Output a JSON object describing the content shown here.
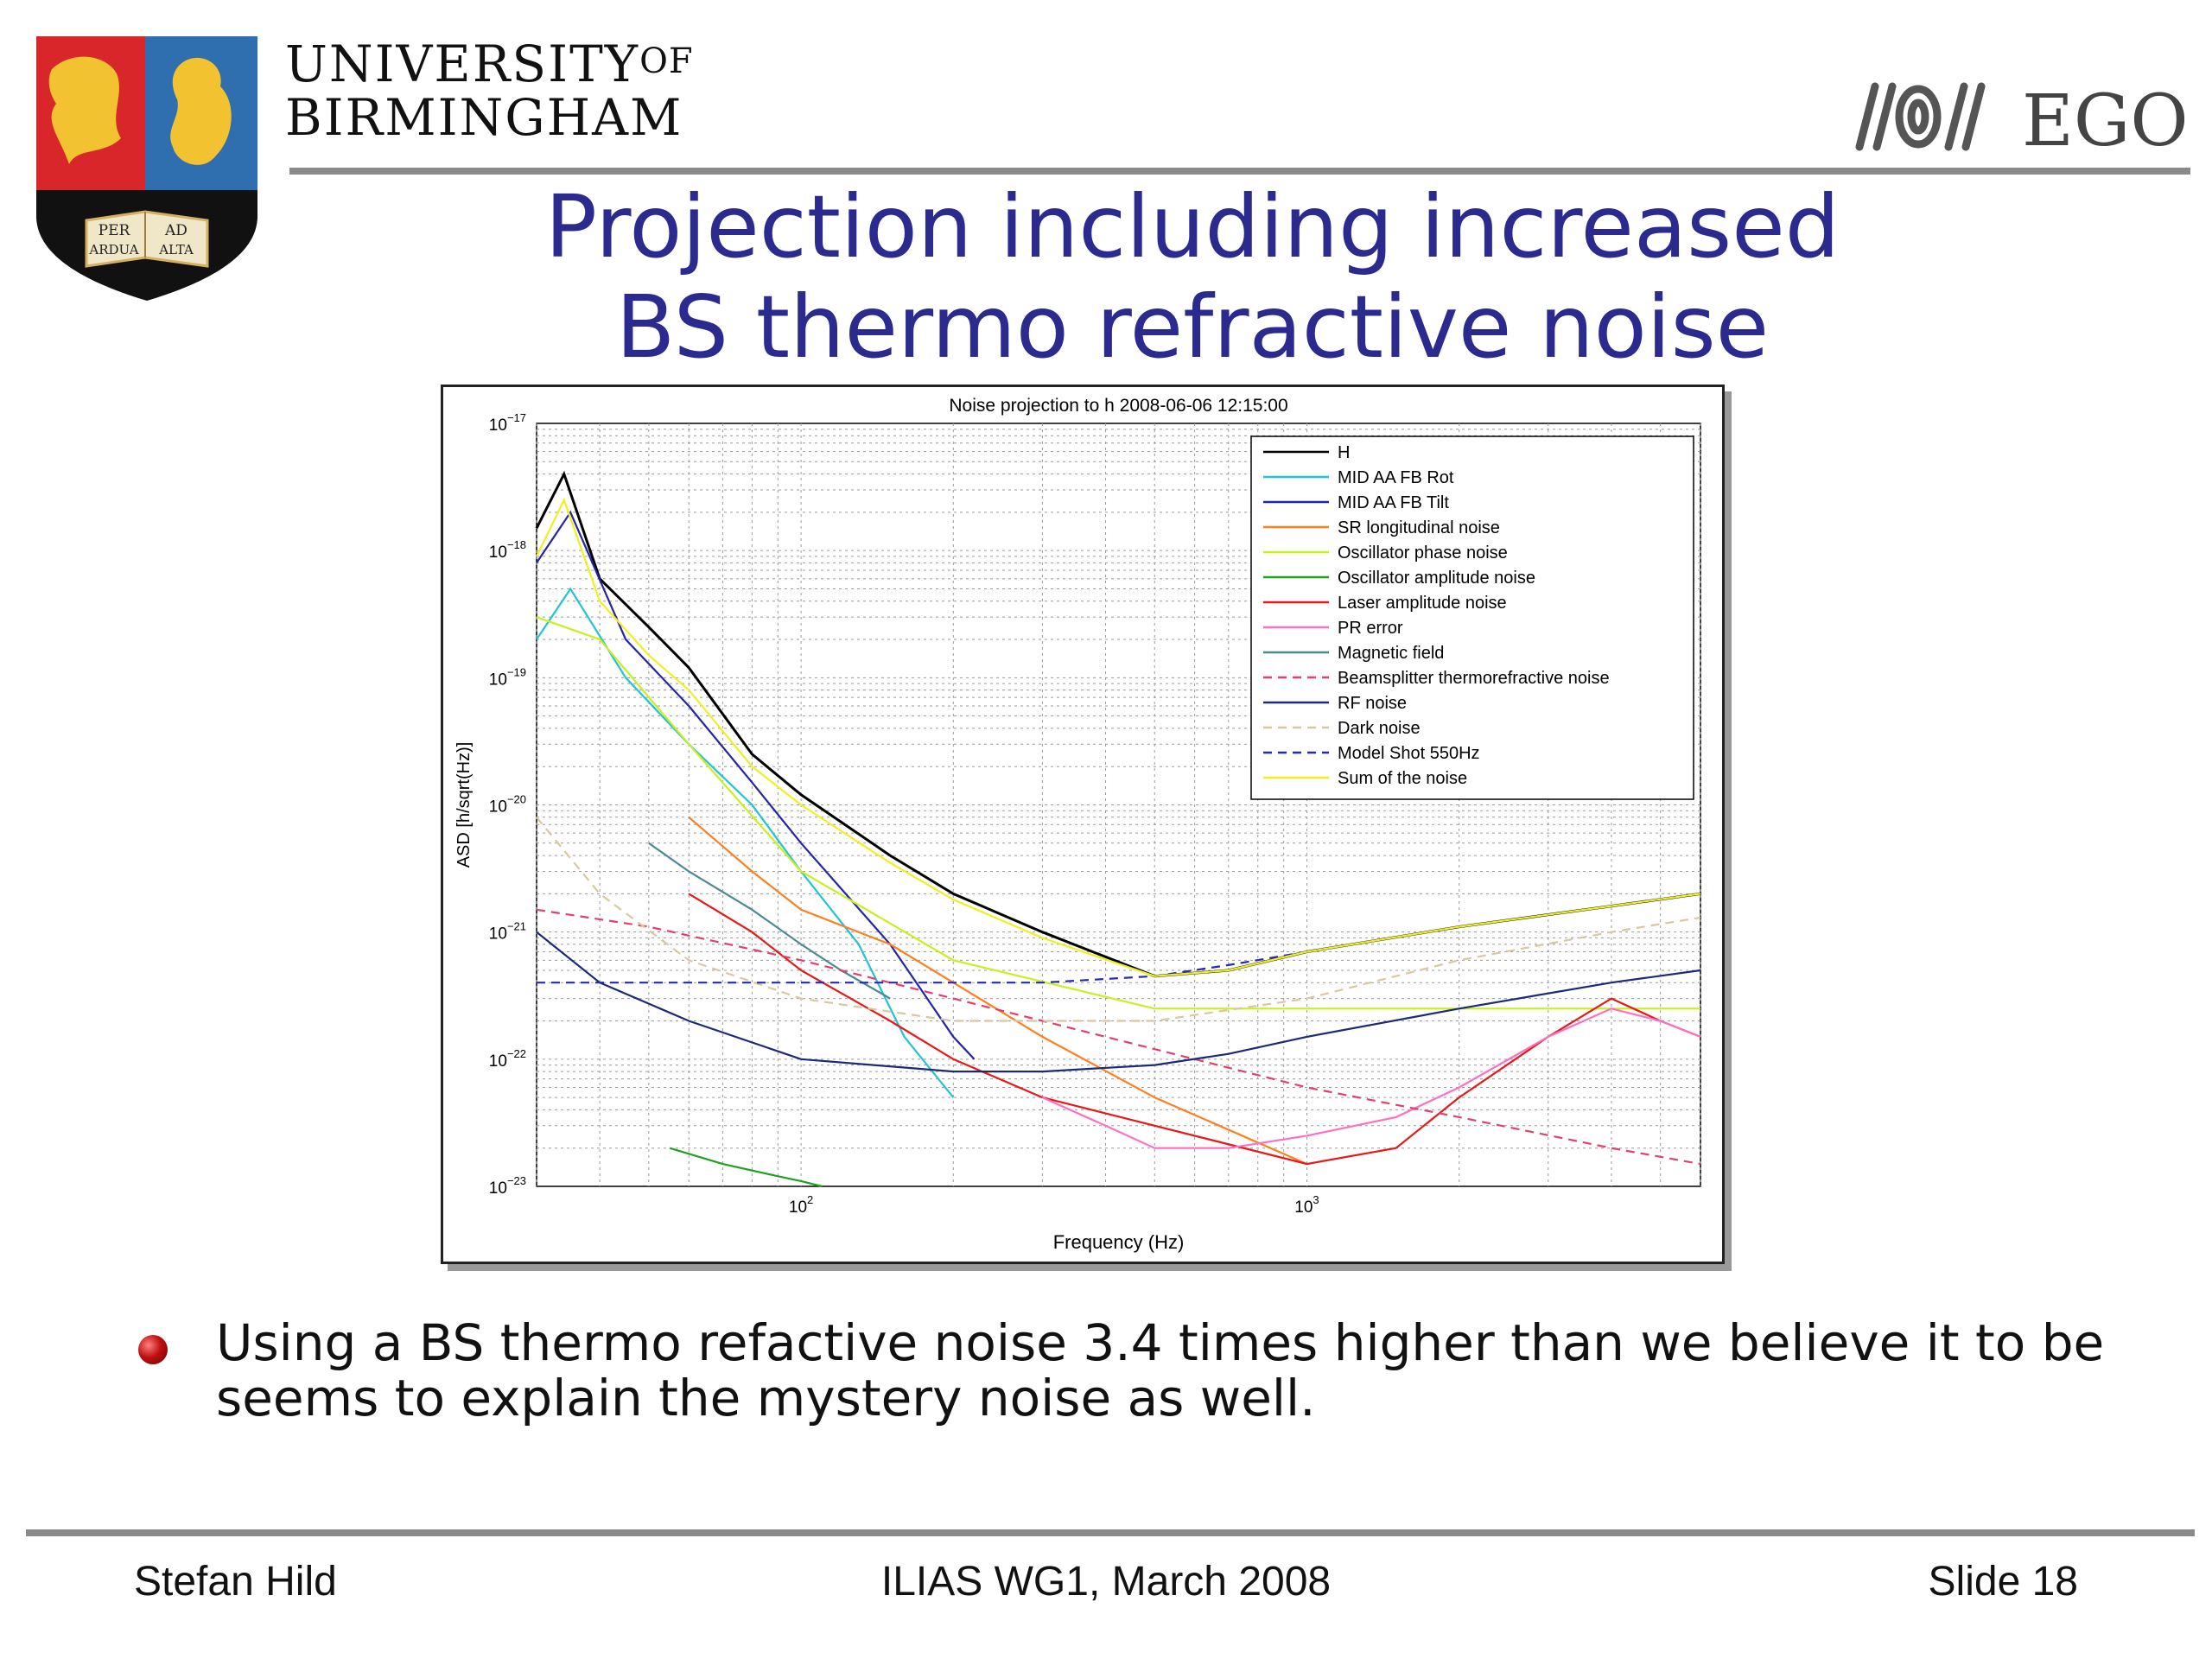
{
  "header": {
    "university_line1": "UNIVERSITY",
    "university_of": "OF",
    "university_line2": "BIRMINGHAM",
    "crest_motto_1": "PER",
    "crest_motto_2": "AD",
    "crest_motto_3": "ARDUA",
    "crest_motto_4": "ALTA",
    "ego_text": "EGO"
  },
  "slide": {
    "title_line1": "Projection including increased",
    "title_line2": "BS thermo refractive noise",
    "bullet": "Using a BS thermo refactive noise 3.4 times higher than we believe it to be seems to explain the mystery noise as well."
  },
  "footer": {
    "author": "Stefan Hild",
    "event": "ILIAS WG1, March 2008",
    "slide_number": "Slide 18"
  },
  "chart_data": {
    "type": "line",
    "title": "Noise projection to h 2008-06-06 12:15:00",
    "xlabel": "Frequency (Hz)",
    "ylabel": "ASD [h/sqrt(Hz)]",
    "x_scale": "log",
    "y_scale": "log",
    "xlim": [
      30,
      6000
    ],
    "ylim": [
      1e-23,
      1e-17
    ],
    "grid": true,
    "legend_position": "top-right",
    "x_ticks": [
      {
        "label": "10",
        "exp": "2",
        "value": 100
      },
      {
        "label": "10",
        "exp": "3",
        "value": 1000
      }
    ],
    "y_ticks": [
      {
        "label": "10",
        "exp": "−17",
        "value": 1e-17
      },
      {
        "label": "10",
        "exp": "−18",
        "value": 1e-18
      },
      {
        "label": "10",
        "exp": "−19",
        "value": 1e-19
      },
      {
        "label": "10",
        "exp": "−20",
        "value": 1e-20
      },
      {
        "label": "10",
        "exp": "−21",
        "value": 1e-21
      },
      {
        "label": "10",
        "exp": "−22",
        "value": 1e-22
      },
      {
        "label": "10",
        "exp": "−23",
        "value": 1e-23
      }
    ],
    "series": [
      {
        "name": "H",
        "color": "#000000",
        "dash": "solid",
        "x": [
          30,
          34,
          40,
          50,
          60,
          80,
          100,
          150,
          200,
          300,
          500,
          700,
          1000,
          2000,
          4000,
          6000
        ],
        "y": [
          1.5e-18,
          4e-18,
          6e-19,
          2.5e-19,
          1.2e-19,
          2.5e-20,
          1.2e-20,
          4e-21,
          2e-21,
          1e-21,
          4.5e-22,
          5e-22,
          7e-22,
          1.1e-21,
          1.6e-21,
          2e-21
        ]
      },
      {
        "name": "MID AA FB Rot",
        "color": "#22c4d4",
        "dash": "solid",
        "x": [
          30,
          35,
          45,
          60,
          80,
          100,
          130,
          160,
          200
        ],
        "y": [
          2e-19,
          5e-19,
          1e-19,
          3e-20,
          1e-20,
          3e-21,
          8e-22,
          1.5e-22,
          5e-23
        ]
      },
      {
        "name": "MID AA FB Tilt",
        "color": "#2424aa",
        "dash": "solid",
        "x": [
          30,
          35,
          45,
          60,
          80,
          100,
          150,
          200,
          220
        ],
        "y": [
          8e-19,
          2e-18,
          2e-19,
          6e-20,
          1.5e-20,
          5e-21,
          8e-22,
          1.5e-22,
          1e-22
        ]
      },
      {
        "name": "SR longitudinal noise",
        "color": "#ff7f20",
        "dash": "solid",
        "x": [
          60,
          80,
          100,
          150,
          200,
          300,
          500,
          1000
        ],
        "y": [
          8e-21,
          3e-21,
          1.5e-21,
          8e-22,
          4e-22,
          1.5e-22,
          5e-23,
          1.5e-23
        ]
      },
      {
        "name": "Oscillator phase noise",
        "color": "#c8f020",
        "dash": "solid",
        "x": [
          30,
          40,
          60,
          100,
          200,
          500,
          1000,
          2000,
          4000,
          6000
        ],
        "y": [
          3e-19,
          2e-19,
          3e-20,
          3e-21,
          6e-22,
          2.5e-22,
          2.5e-22,
          2.5e-22,
          2.5e-22,
          2.5e-22
        ]
      },
      {
        "name": "Oscillator amplitude noise",
        "color": "#20a020",
        "dash": "solid",
        "x": [
          55,
          70,
          90,
          100,
          110
        ],
        "y": [
          2e-23,
          1.5e-23,
          1.2e-23,
          1.1e-23,
          1e-23
        ]
      },
      {
        "name": "Laser amplitude noise",
        "color": "#e81818",
        "dash": "solid",
        "x": [
          60,
          80,
          100,
          150,
          200,
          300,
          500,
          1000,
          1500,
          2000,
          3000,
          4000,
          5000,
          6000
        ],
        "y": [
          2e-21,
          1e-21,
          5e-22,
          2e-22,
          1e-22,
          5e-23,
          3e-23,
          1.5e-23,
          2e-23,
          5e-23,
          1.5e-22,
          3e-22,
          2e-22,
          1.5e-22
        ]
      },
      {
        "name": "PR error",
        "color": "#ff70c0",
        "dash": "solid",
        "x": [
          300,
          400,
          500,
          700,
          1000,
          1500,
          2000,
          3000,
          4000,
          5000,
          6000
        ],
        "y": [
          5e-23,
          3e-23,
          2e-23,
          2e-23,
          2.5e-23,
          3.5e-23,
          6e-23,
          1.5e-22,
          2.5e-22,
          2e-22,
          1.5e-22
        ]
      },
      {
        "name": "Magnetic field",
        "color": "#4a8a96",
        "dash": "solid",
        "x": [
          50,
          60,
          80,
          100,
          120,
          150
        ],
        "y": [
          5e-21,
          3e-21,
          1.5e-21,
          8e-22,
          5e-22,
          3e-22
        ]
      },
      {
        "name": "Beamsplitter thermorefractive noise",
        "color": "#e0406a",
        "dash": "dashed",
        "x": [
          30,
          50,
          100,
          200,
          300,
          500,
          1000,
          2000,
          4000,
          6000
        ],
        "y": [
          1.5e-21,
          1.1e-21,
          6e-22,
          3e-22,
          2e-22,
          1.2e-22,
          6e-23,
          3.5e-23,
          2e-23,
          1.5e-23
        ]
      },
      {
        "name": "RF noise",
        "color": "#1a2a78",
        "dash": "solid",
        "x": [
          30,
          40,
          60,
          100,
          200,
          300,
          500,
          700,
          1000,
          2000,
          4000,
          6000
        ],
        "y": [
          1e-21,
          4e-22,
          2e-22,
          1e-22,
          8e-23,
          8e-23,
          9e-23,
          1.1e-22,
          1.5e-22,
          2.5e-22,
          4e-22,
          5e-22
        ]
      },
      {
        "name": "Dark noise",
        "color": "#d8c8a0",
        "dash": "dashed",
        "x": [
          30,
          40,
          60,
          100,
          200,
          500,
          1000,
          2000,
          4000,
          6000
        ],
        "y": [
          8e-21,
          2e-21,
          6e-22,
          3e-22,
          2e-22,
          2e-22,
          3e-22,
          6e-22,
          1e-21,
          1.3e-21
        ]
      },
      {
        "name": "Model Shot 550Hz",
        "color": "#2828b4",
        "dash": "dashed",
        "x": [
          30,
          50,
          100,
          200,
          300,
          500,
          700,
          1000,
          2000,
          4000,
          6000
        ],
        "y": [
          4e-22,
          4e-22,
          4e-22,
          4e-22,
          4e-22,
          4.5e-22,
          5.5e-22,
          7e-22,
          1.1e-21,
          1.6e-21,
          2e-21
        ]
      },
      {
        "name": "Sum of the noise",
        "color": "#f0f020",
        "dash": "solid",
        "x": [
          30,
          34,
          40,
          50,
          60,
          80,
          100,
          150,
          200,
          300,
          500,
          700,
          1000,
          2000,
          4000,
          6000
        ],
        "y": [
          9e-19,
          2.5e-18,
          4e-19,
          1.5e-19,
          8e-20,
          2e-20,
          1e-20,
          3.5e-21,
          1.8e-21,
          9e-22,
          4.5e-22,
          5e-22,
          7e-22,
          1.1e-21,
          1.6e-21,
          2e-21
        ]
      }
    ]
  }
}
